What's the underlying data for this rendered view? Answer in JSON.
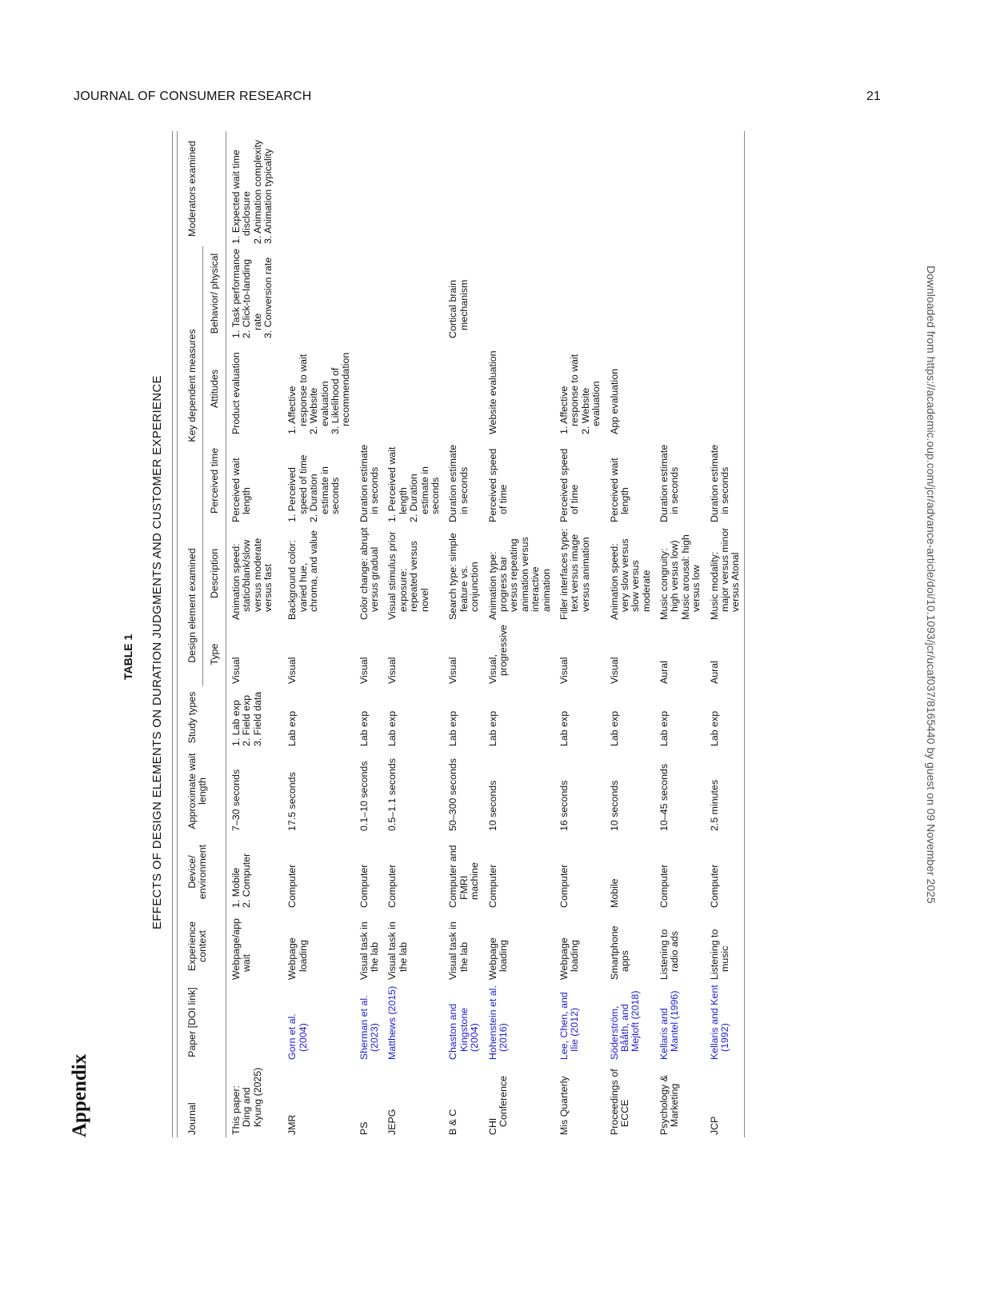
{
  "running_head": "JOURNAL OF CONSUMER RESEARCH",
  "page_number": "21",
  "appendix": "Appendix",
  "table_label": "TABLE 1",
  "table_title": "EFFECTS OF DESIGN ELEMENTS ON DURATION JUDGMENTS AND CUSTOMER EXPERIENCE",
  "download_note": "Downloaded from https://academic.oup.com/jcr/advance-article/doi/10.1093/jcr/ucaf037/8165440 by guest on 09 November 2025",
  "link_color": "#1a1adb",
  "header": {
    "journal": "Journal",
    "paper": "Paper [DOI link]",
    "context": "Experience context",
    "device": "Device/ environment",
    "wait": "Approximate wait length",
    "study": "Study types",
    "design_group": "Design element examined",
    "type": "Type",
    "description": "Description",
    "measures_group": "Key dependent measures",
    "perceived": "Perceived time",
    "attitudes": "Attitudes",
    "behavior": "Behavior/ physical",
    "moderators": "Moderators examined"
  },
  "rows": [
    {
      "journal": [
        "This paper: Ding and Kyung (2025)"
      ],
      "paper": [],
      "paper_link": false,
      "context": [
        "Webpage/app wait"
      ],
      "device": [
        "1. Mobile",
        "2. Computer"
      ],
      "wait": [
        "7–30 seconds"
      ],
      "study": [
        "1. Lab exp",
        "2. Field exp",
        "3. Field data"
      ],
      "type": [
        "Visual"
      ],
      "description": [
        "Animation speed: static/blank/slow versus moderate versus fast"
      ],
      "perceived": [
        "Perceived wait length"
      ],
      "attitudes": [
        "Product evaluation"
      ],
      "behavior": [
        "1. Task performance",
        "2. Click-to-landing rate",
        "3. Conversion rate"
      ],
      "moderators": [
        "1. Expected wait time disclosure",
        "2. Animation complexity",
        "3. Animation typicality"
      ]
    },
    {
      "journal": [
        "JMR"
      ],
      "paper": [
        "Gorn et al. (2004)"
      ],
      "paper_link": true,
      "context": [
        "Webpage loading"
      ],
      "device": [
        "Computer"
      ],
      "wait": [
        "17.5 seconds"
      ],
      "study": [
        "Lab exp"
      ],
      "type": [
        "Visual"
      ],
      "description": [
        "Background color: varied hue, chroma, and value"
      ],
      "perceived": [
        "1. Perceived speed of time",
        "2. Duration estimate in seconds"
      ],
      "attitudes": [
        "1. Affective response to wait",
        "2. Website evaluation",
        "3. Likelihood of recommendation"
      ],
      "behavior": [],
      "moderators": []
    },
    {
      "journal": [
        "PS"
      ],
      "paper": [
        "Sherman et al. (2023)"
      ],
      "paper_link": true,
      "context": [
        "Visual task in the lab"
      ],
      "device": [
        "Computer"
      ],
      "wait": [
        "0.1–10 seconds"
      ],
      "study": [
        "Lab exp"
      ],
      "type": [
        "Visual"
      ],
      "description": [
        "Color change: abrupt versus gradual"
      ],
      "perceived": [
        "Duration estimate in seconds"
      ],
      "attitudes": [],
      "behavior": [],
      "moderators": []
    },
    {
      "journal": [
        "JEPG"
      ],
      "paper": [
        "Matthews (2015)"
      ],
      "paper_link": true,
      "context": [
        "Visual task in the lab"
      ],
      "device": [
        "Computer"
      ],
      "wait": [
        "0.5–1.1 seconds"
      ],
      "study": [
        "Lab exp"
      ],
      "type": [
        "Visual"
      ],
      "description": [
        "Visual stimulus prior exposure: repeated versus novel"
      ],
      "perceived": [
        "1. Perceived wait length",
        "2. Duration estimate in seconds"
      ],
      "attitudes": [],
      "behavior": [],
      "moderators": []
    },
    {
      "journal": [
        "B & C"
      ],
      "paper": [
        "Chaston and Kingstone (2004)"
      ],
      "paper_link": true,
      "context": [
        "Visual task in the lab"
      ],
      "device": [
        "Computer and FMRI machine"
      ],
      "wait": [
        "50–300 seconds"
      ],
      "study": [
        "Lab exp"
      ],
      "type": [
        "Visual"
      ],
      "description": [
        "Search type: simple feature vs. conjunction"
      ],
      "perceived": [
        "Duration estimate in seconds"
      ],
      "attitudes": [],
      "behavior": [
        "Cortical brain mechanism"
      ],
      "moderators": []
    },
    {
      "journal": [
        "CHI Conference"
      ],
      "paper": [
        "Hohenstein et al. (2016)"
      ],
      "paper_link": true,
      "context": [
        "Webpage loading"
      ],
      "device": [
        "Computer"
      ],
      "wait": [
        "10 seconds"
      ],
      "study": [
        "Lab exp"
      ],
      "type": [
        "Visual, progressive"
      ],
      "description": [
        "Animation type: progress bar versus repeating animation versus interactive animation"
      ],
      "perceived": [
        "Perceived speed of time"
      ],
      "attitudes": [
        "Website evaluation"
      ],
      "behavior": [],
      "moderators": []
    },
    {
      "journal": [
        "Mis Quarterly"
      ],
      "paper": [
        "Lee, Chen, and Ilie (2012)"
      ],
      "paper_link": true,
      "context": [
        "Webpage loading"
      ],
      "device": [
        "Computer"
      ],
      "wait": [
        "16 seconds"
      ],
      "study": [
        "Lab exp"
      ],
      "type": [
        "Visual"
      ],
      "description": [
        "Filler interfaces type: text versus image versus animation"
      ],
      "perceived": [
        "Perceived speed of time"
      ],
      "attitudes": [
        "1. Affective response to wait",
        "2. Website evaluation"
      ],
      "behavior": [],
      "moderators": []
    },
    {
      "journal": [
        "Proceedings of ECCE"
      ],
      "paper": [
        "Söderström, Bååth, and Mejtoft (2018)"
      ],
      "paper_link": true,
      "context": [
        "Smartphone apps"
      ],
      "device": [
        "Mobile"
      ],
      "wait": [
        "10 seconds"
      ],
      "study": [
        "Lab exp"
      ],
      "type": [
        "Visual"
      ],
      "description": [
        "Animation speed: very slow versus slow versus moderate"
      ],
      "perceived": [
        "Perceived wait length"
      ],
      "attitudes": [
        "App evaluation"
      ],
      "behavior": [],
      "moderators": []
    },
    {
      "journal": [
        "Psychology & Marketing"
      ],
      "paper": [
        "Kellaris and Mantel (1996)"
      ],
      "paper_link": true,
      "context": [
        "Listening to radio ads"
      ],
      "device": [
        "Computer"
      ],
      "wait": [
        "10–45 seconds"
      ],
      "study": [
        "Lab exp"
      ],
      "type": [
        "Aural"
      ],
      "description": [
        "Music congruity: high versus low)",
        "Music arousal: high versus low"
      ],
      "perceived": [
        "Duration estimate in seconds"
      ],
      "attitudes": [],
      "behavior": [],
      "moderators": []
    },
    {
      "journal": [
        "JCP"
      ],
      "paper": [
        "Kellaris and Kent (1992)"
      ],
      "paper_link": true,
      "context": [
        "Listening to music"
      ],
      "device": [
        "Computer"
      ],
      "wait": [
        "2.5 minutes"
      ],
      "study": [
        "Lab exp"
      ],
      "type": [
        "Aural"
      ],
      "description": [
        "Music modality: major versus minor versus Atonal"
      ],
      "perceived": [
        "Duration estimate in seconds"
      ],
      "attitudes": [],
      "behavior": [],
      "moderators": []
    }
  ]
}
